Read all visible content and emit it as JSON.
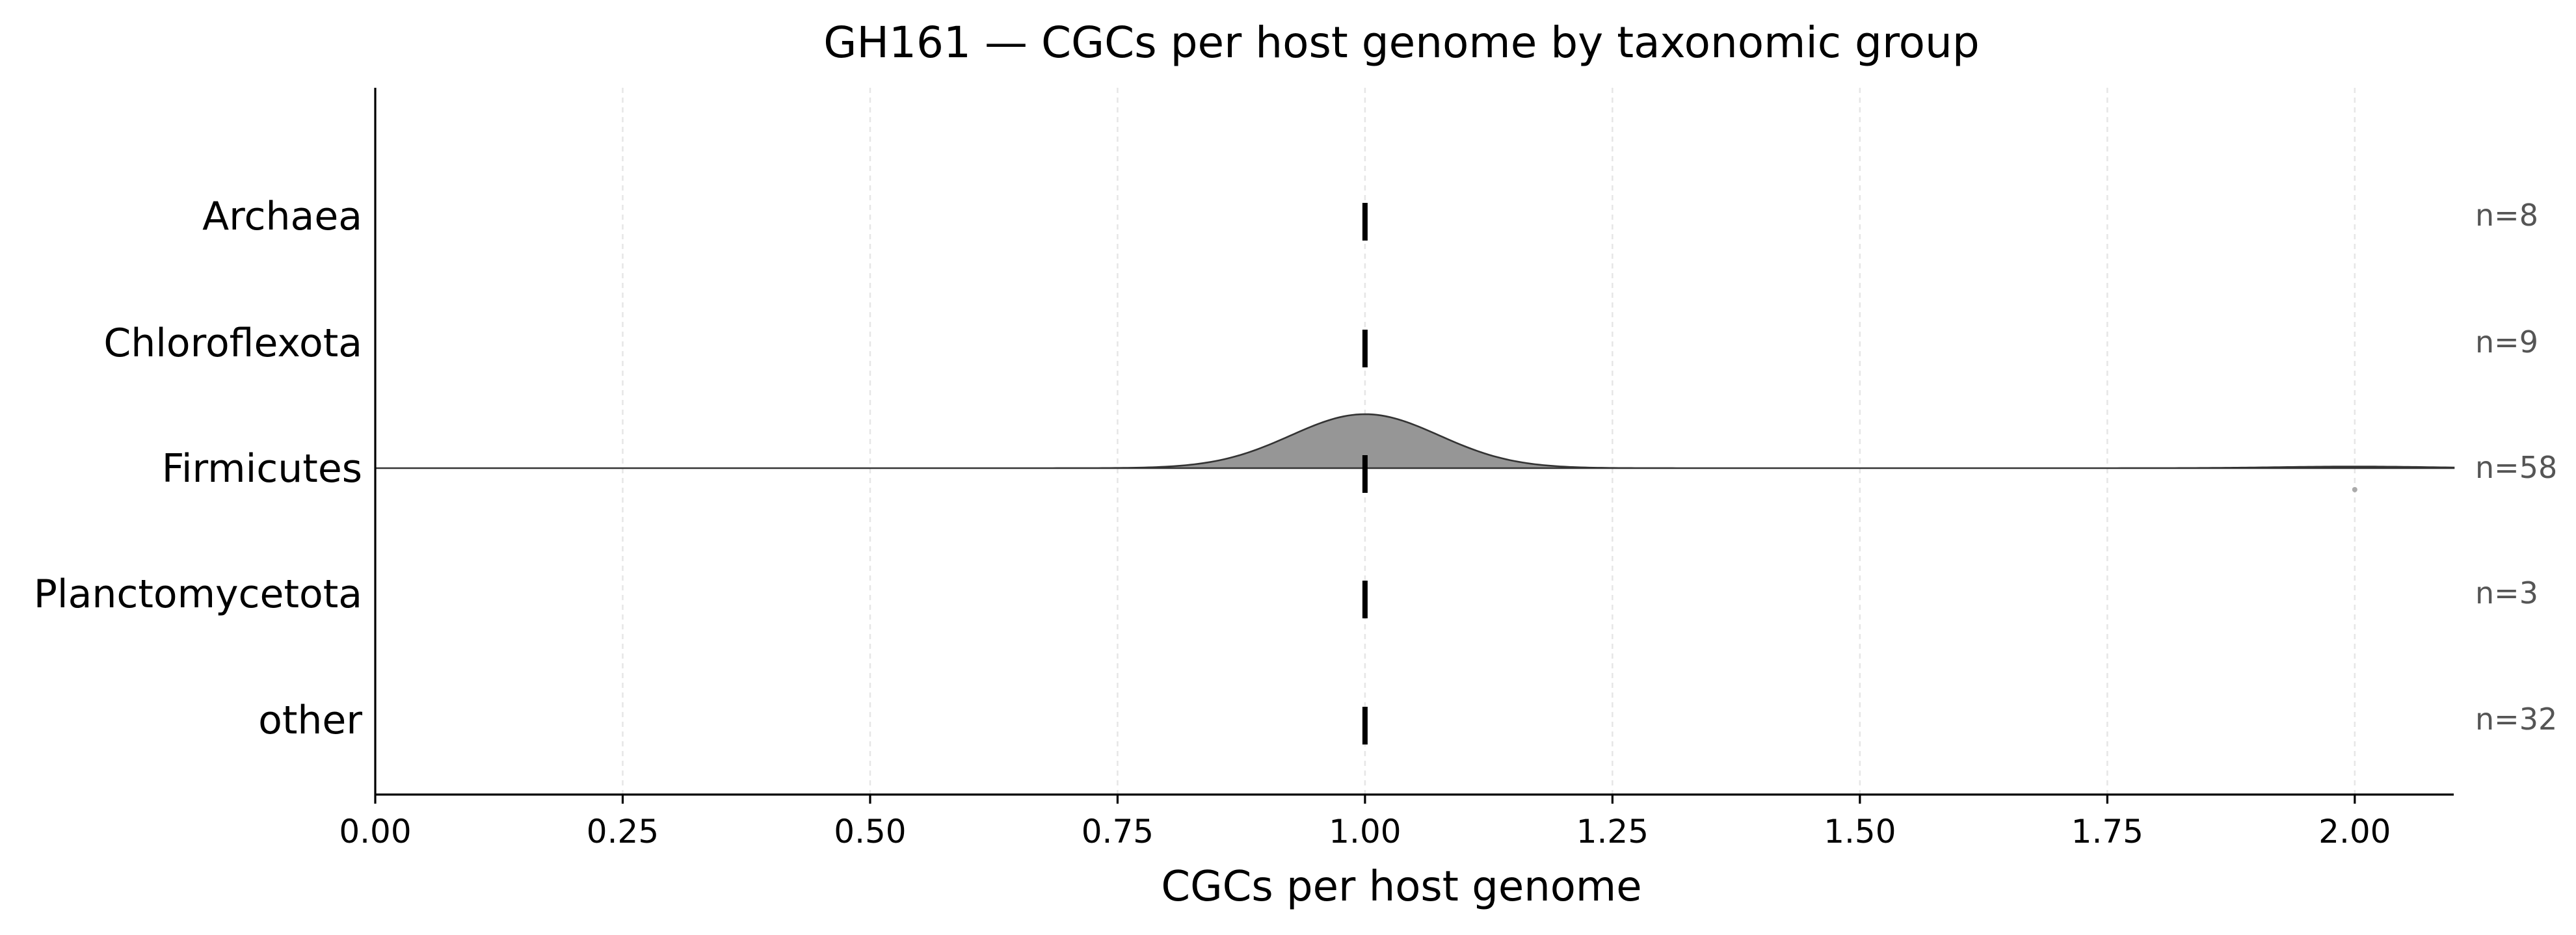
{
  "chart_data": {
    "type": "ridgeline",
    "title": "GH161 — CGCs per host genome by taxonomic group",
    "xlabel": "CGCs per host genome",
    "ylabel": "",
    "xlim": [
      0,
      2.1
    ],
    "x_ticks": [
      "0.00",
      "0.25",
      "0.50",
      "0.75",
      "1.00",
      "1.25",
      "1.50",
      "1.75",
      "2.00"
    ],
    "x_tick_values": [
      0,
      0.25,
      0.5,
      0.75,
      1.0,
      1.25,
      1.5,
      1.75,
      2.0
    ],
    "grid": "vertical dashed",
    "colors": {
      "density_fill": "#969696",
      "density_line": "#333333",
      "median": "#000000",
      "n_label": "#555555",
      "outlier": "#aaaaaa"
    },
    "groups": [
      {
        "name": "Archaea",
        "n_label": "n=8",
        "n": 8,
        "median": 1.0,
        "density": null,
        "outliers": []
      },
      {
        "name": "Chloroflexota",
        "n_label": "n=9",
        "n": 9,
        "median": 1.0,
        "density": null,
        "outliers": []
      },
      {
        "name": "Firmicutes",
        "n_label": "n=58",
        "n": 58,
        "median": 1.0,
        "density": {
          "peaks": [
            {
              "center": 1.0,
              "sd": 0.075,
              "height": 1.0
            },
            {
              "center": 2.0,
              "sd": 0.075,
              "height": 0.03
            }
          ]
        },
        "outliers": [
          2.0
        ]
      },
      {
        "name": "Planctomycetota",
        "n_label": "n=3",
        "n": 3,
        "median": 1.0,
        "density": null,
        "outliers": []
      },
      {
        "name": "other",
        "n_label": "n=32",
        "n": 32,
        "median": 1.0,
        "density": null,
        "outliers": []
      }
    ]
  }
}
